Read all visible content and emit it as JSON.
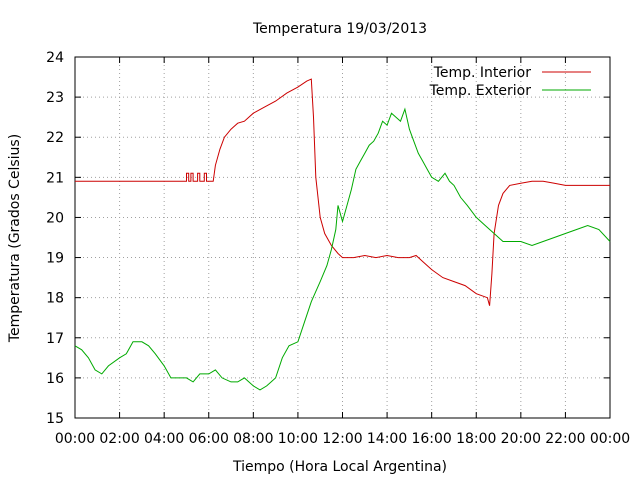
{
  "chart_data": {
    "type": "line",
    "title": "Temperatura 19/03/2013",
    "xlabel": "Tiempo (Hora Local Argentina)",
    "ylabel": "Temperatura (Grados Celsius)",
    "xlim": [
      0,
      24
    ],
    "ylim": [
      15,
      24
    ],
    "x_ticks": [
      "00:00",
      "02:00",
      "04:00",
      "06:00",
      "08:00",
      "10:00",
      "12:00",
      "14:00",
      "16:00",
      "18:00",
      "20:00",
      "22:00",
      "00:00"
    ],
    "y_ticks": [
      "15",
      "16",
      "17",
      "18",
      "19",
      "20",
      "21",
      "22",
      "23",
      "24"
    ],
    "grid": true,
    "legend_position": "top-right",
    "series": [
      {
        "name": "Temp. Interior",
        "color": "#cc0000",
        "x": [
          0,
          5.0,
          5.0,
          5.1,
          5.1,
          5.2,
          5.2,
          5.3,
          5.3,
          5.5,
          5.5,
          5.6,
          5.6,
          5.8,
          5.8,
          5.9,
          5.9,
          6.2,
          6.3,
          6.5,
          6.7,
          7.0,
          7.3,
          7.6,
          8.0,
          8.5,
          9.0,
          9.5,
          10.0,
          10.4,
          10.6,
          10.7,
          10.8,
          11.0,
          11.2,
          11.5,
          11.8,
          12.0,
          12.5,
          13.0,
          13.5,
          14.0,
          14.5,
          15.0,
          15.3,
          15.6,
          16.0,
          16.5,
          17.0,
          17.5,
          18.0,
          18.5,
          18.6,
          18.7,
          18.8,
          19.0,
          19.2,
          19.5,
          20.0,
          20.5,
          21.0,
          21.5,
          22.0,
          22.5,
          23.0,
          24.0
        ],
        "y": [
          20.9,
          20.9,
          21.1,
          21.1,
          20.9,
          20.9,
          21.1,
          21.1,
          20.9,
          20.9,
          21.1,
          21.1,
          20.9,
          20.9,
          21.1,
          21.1,
          20.9,
          20.9,
          21.3,
          21.7,
          22.0,
          22.2,
          22.35,
          22.4,
          22.6,
          22.75,
          22.9,
          23.1,
          23.25,
          23.4,
          23.45,
          22.5,
          21.0,
          20.0,
          19.6,
          19.3,
          19.1,
          19.0,
          19.0,
          19.05,
          19.0,
          19.05,
          19.0,
          19.0,
          19.05,
          18.9,
          18.7,
          18.5,
          18.4,
          18.3,
          18.1,
          18.0,
          17.8,
          18.6,
          19.6,
          20.3,
          20.6,
          20.8,
          20.85,
          20.9,
          20.9,
          20.85,
          20.8,
          20.8,
          20.8,
          20.8
        ]
      },
      {
        "name": "Temp. Exterior",
        "color": "#00aa00",
        "x": [
          0,
          0.3,
          0.6,
          0.9,
          1.2,
          1.5,
          2.0,
          2.3,
          2.6,
          3.0,
          3.3,
          3.6,
          4.0,
          4.3,
          4.6,
          5.0,
          5.3,
          5.6,
          6.0,
          6.3,
          6.6,
          7.0,
          7.3,
          7.6,
          8.0,
          8.3,
          8.6,
          9.0,
          9.3,
          9.6,
          10.0,
          10.3,
          10.6,
          11.0,
          11.3,
          11.5,
          11.7,
          11.8,
          12.0,
          12.2,
          12.4,
          12.6,
          12.8,
          13.0,
          13.2,
          13.4,
          13.6,
          13.8,
          14.0,
          14.2,
          14.4,
          14.6,
          14.8,
          15.0,
          15.2,
          15.4,
          15.6,
          15.8,
          16.0,
          16.3,
          16.6,
          16.8,
          17.0,
          17.3,
          17.6,
          18.0,
          18.4,
          18.8,
          19.2,
          19.6,
          20.0,
          20.5,
          21.0,
          21.5,
          22.0,
          22.5,
          23.0,
          23.5,
          24.0
        ],
        "y": [
          16.8,
          16.7,
          16.5,
          16.2,
          16.1,
          16.3,
          16.5,
          16.6,
          16.9,
          16.9,
          16.8,
          16.6,
          16.3,
          16.0,
          16.0,
          16.0,
          15.9,
          16.1,
          16.1,
          16.2,
          16.0,
          15.9,
          15.9,
          16.0,
          15.8,
          15.7,
          15.8,
          16.0,
          16.5,
          16.8,
          16.9,
          17.4,
          17.9,
          18.4,
          18.8,
          19.2,
          19.7,
          20.3,
          19.9,
          20.3,
          20.7,
          21.2,
          21.4,
          21.6,
          21.8,
          21.9,
          22.1,
          22.4,
          22.3,
          22.6,
          22.5,
          22.4,
          22.7,
          22.2,
          21.9,
          21.6,
          21.4,
          21.2,
          21.0,
          20.9,
          21.1,
          20.9,
          20.8,
          20.5,
          20.3,
          20.0,
          19.8,
          19.6,
          19.4,
          19.4,
          19.4,
          19.3,
          19.4,
          19.5,
          19.6,
          19.7,
          19.8,
          19.7,
          19.4
        ]
      }
    ]
  }
}
